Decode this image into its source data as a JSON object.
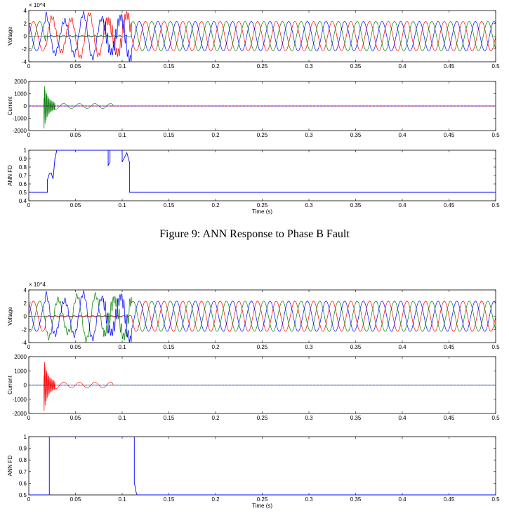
{
  "caption": "Figure 9: ANN Response to Phase B Fault",
  "colors": {
    "phase_a": "#ff0000",
    "phase_b": "#008000",
    "phase_c": "#0000ff",
    "axis": "#000000"
  },
  "chart_data": [
    {
      "type": "line",
      "panel": "figure1-voltage",
      "ylabel": "Voltage",
      "multiplier": "× 10^4",
      "xlim": [
        0,
        0.5
      ],
      "ylim": [
        -4,
        4
      ],
      "xticks": [
        "0",
        "0.05",
        "0.1",
        "0.15",
        "0.2",
        "0.25",
        "0.3",
        "0.35",
        "0.4",
        "0.45",
        "0.5"
      ],
      "yticks": [
        "-4",
        "-2",
        "0",
        "2",
        "4"
      ],
      "series": [
        {
          "color": "#ff0000",
          "waveform": "three-phase sinusoid, 50 Hz, ~2.3e4 amplitude, distorted 0.02–0.11 s"
        },
        {
          "color": "#008000",
          "waveform": "three-phase sinusoid, 50 Hz, ~2.3e4 amplitude, collapsed during fault 0.02–0.11 s"
        },
        {
          "color": "#0000ff",
          "waveform": "three-phase sinusoid, 50 Hz, ~2.3e4 amplitude, distorted 0.02–0.11 s"
        }
      ]
    },
    {
      "type": "line",
      "panel": "figure1-current",
      "ylabel": "Current",
      "xlim": [
        0,
        0.5
      ],
      "ylim": [
        -2000,
        2000
      ],
      "xticks": [
        "0",
        "0.05",
        "0.1",
        "0.15",
        "0.2",
        "0.25",
        "0.3",
        "0.35",
        "0.4",
        "0.45",
        "0.5"
      ],
      "yticks": [
        "-2000",
        "-1000",
        "0",
        "1000",
        "2000"
      ],
      "series": [
        {
          "color": "#008000",
          "waveform": "fault transient peak ~1800 at 0.018 s, decaying to ~200 oscillation until 0.085 s"
        },
        {
          "color": "#ff0000",
          "waveform": "near zero"
        },
        {
          "color": "#0000ff",
          "waveform": "near zero"
        }
      ]
    },
    {
      "type": "line",
      "panel": "figure1-ann",
      "ylabel": "ANN FD",
      "xlabel": "Time (s)",
      "xlim": [
        0,
        0.5
      ],
      "ylim": [
        0.4,
        1
      ],
      "xticks": [
        "0",
        "0.05",
        "0.1",
        "0.15",
        "0.2",
        "0.25",
        "0.3",
        "0.35",
        "0.4",
        "0.45",
        "0.5"
      ],
      "yticks": [
        "0.4",
        "0.5",
        "0.6",
        "0.7",
        "0.8",
        "0.9",
        "1"
      ],
      "series": [
        {
          "color": "#0000ff",
          "x": [
            0,
            0.02,
            0.02,
            0.022,
            0.024,
            0.026,
            0.028,
            0.03,
            0.085,
            0.085,
            0.087,
            0.087,
            0.1,
            0.1,
            0.105,
            0.108,
            0.108,
            0.5
          ],
          "y": [
            0.5,
            0.5,
            0.65,
            0.72,
            0.73,
            0.66,
            0.9,
            1,
            1,
            0.82,
            0.86,
            1,
            1,
            0.86,
            0.97,
            0.85,
            0.5,
            0.5
          ]
        }
      ]
    },
    {
      "type": "line",
      "panel": "figure2-voltage",
      "ylabel": "Voltage",
      "multiplier": "× 10^4",
      "xlim": [
        0,
        0.5
      ],
      "ylim": [
        -4,
        4
      ],
      "xticks": [
        "0",
        "0.05",
        "0.1",
        "0.15",
        "0.2",
        "0.25",
        "0.3",
        "0.35",
        "0.4",
        "0.45",
        "0.5"
      ],
      "yticks": [
        "-4",
        "-2",
        "0",
        "2",
        "4"
      ],
      "series": [
        {
          "color": "#ff0000",
          "waveform": "three-phase sinusoid, collapsed during fault 0.02–0.11 s"
        },
        {
          "color": "#008000",
          "waveform": "three-phase sinusoid, distorted 0.02–0.11 s"
        },
        {
          "color": "#0000ff",
          "waveform": "three-phase sinusoid, distorted 0.02–0.11 s"
        }
      ]
    },
    {
      "type": "line",
      "panel": "figure2-current",
      "ylabel": "Current",
      "xlim": [
        0,
        0.5
      ],
      "ylim": [
        -2000,
        2000
      ],
      "xticks": [
        "0",
        "0.05",
        "0.1",
        "0.15",
        "0.2",
        "0.25",
        "0.3",
        "0.35",
        "0.4",
        "0.45",
        "0.5"
      ],
      "yticks": [
        "-2000",
        "-1000",
        "0",
        "1000",
        "2000"
      ],
      "series": [
        {
          "color": "#ff0000",
          "waveform": "fault transient peak ~1800 at 0.018 s, decaying to ~200 oscillation until 0.09 s"
        },
        {
          "color": "#008000",
          "waveform": "near zero"
        },
        {
          "color": "#0000ff",
          "waveform": "near zero"
        }
      ]
    },
    {
      "type": "line",
      "panel": "figure2-ann",
      "ylabel": "ANN FD",
      "xlabel": "Time (s)",
      "xlim": [
        0,
        0.5
      ],
      "ylim": [
        0.5,
        1
      ],
      "xticks": [
        "0",
        "0.05",
        "0.1",
        "0.15",
        "0.2",
        "0.25",
        "0.3",
        "0.35",
        "0.4",
        "0.45",
        "0.5"
      ],
      "yticks": [
        "0.5",
        "0.6",
        "0.7",
        "0.8",
        "0.9",
        "1"
      ],
      "series": [
        {
          "color": "#0000ff",
          "x": [
            0,
            0.022,
            0.022,
            0.113,
            0.113,
            0.114,
            0.115,
            0.116,
            0.5
          ],
          "y": [
            0.5,
            0.5,
            1,
            1,
            0.6,
            0.57,
            0.52,
            0.5,
            0.5
          ]
        }
      ]
    }
  ]
}
